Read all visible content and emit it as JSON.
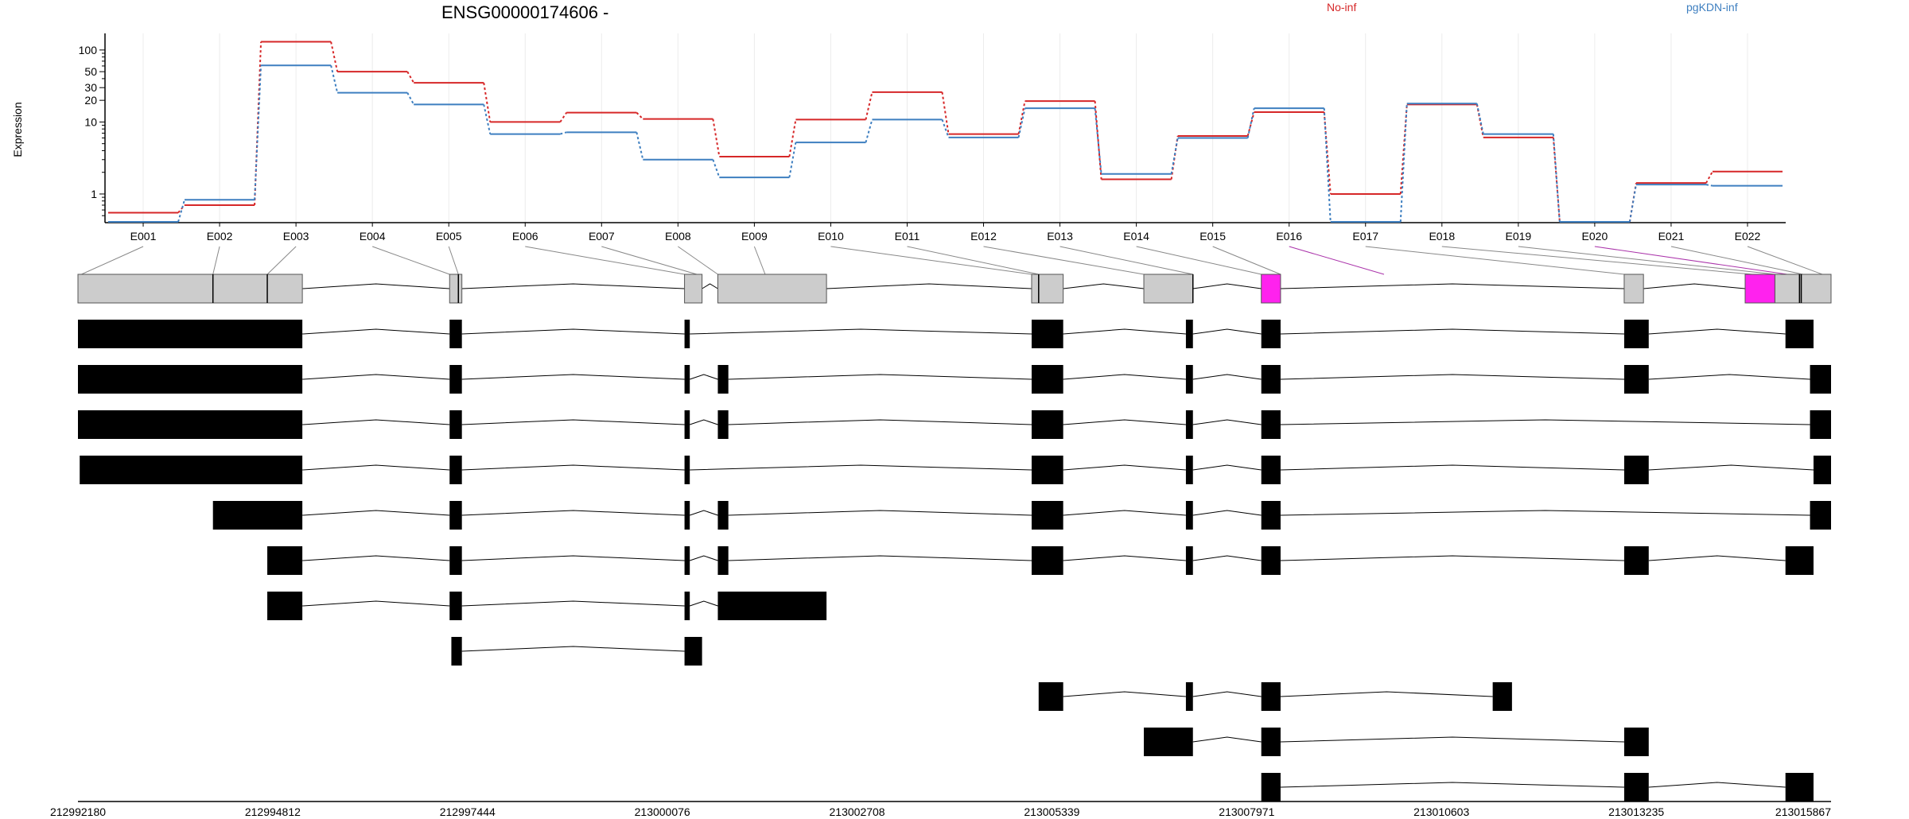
{
  "chart_data": {
    "type": "line",
    "title": "ENSG00000174606 -",
    "ylabel": "Expression",
    "y_scale": "log",
    "y_ticks": [
      1,
      10,
      20,
      30,
      50,
      100
    ],
    "exons": [
      "E001",
      "E002",
      "E003",
      "E004",
      "E005",
      "E006",
      "E007",
      "E008",
      "E009",
      "E010",
      "E011",
      "E012",
      "E013",
      "E014",
      "E015",
      "E016",
      "E017",
      "E018",
      "E019",
      "E020",
      "E021",
      "E022"
    ],
    "series": [
      {
        "name": "No-inf",
        "color": "#d62728",
        "values": [
          0.55,
          0.7,
          130,
          50,
          35,
          10,
          13.5,
          11,
          3.3,
          10.8,
          26,
          6.8,
          19.5,
          1.6,
          6.4,
          13.7,
          1.0,
          17.5,
          6.1,
          0.41,
          1.42,
          2.05
        ]
      },
      {
        "name": "pgKDN-inf",
        "color": "#3e7fc0",
        "values": [
          0.41,
          0.83,
          61,
          25.5,
          17.5,
          6.8,
          7.2,
          3.0,
          1.7,
          5.2,
          10.8,
          6.1,
          15.5,
          1.9,
          6.0,
          15.5,
          0.41,
          18,
          6.8,
          0.41,
          1.35,
          1.3
        ]
      }
    ],
    "gene_model": {
      "exon_ranges": [
        [
          0,
          1
        ],
        [
          1,
          2
        ],
        [
          2,
          3
        ],
        [
          3,
          4
        ],
        [
          4,
          5
        ],
        [
          5,
          6
        ],
        [
          6,
          7
        ],
        [
          7,
          8
        ],
        [
          8,
          9
        ],
        [
          9,
          10
        ],
        [
          10,
          11
        ],
        [
          11,
          12
        ],
        [
          12,
          13
        ],
        [
          13,
          14
        ],
        [
          14,
          15
        ],
        [
          15,
          16
        ],
        [
          16,
          17
        ],
        [
          17,
          18
        ],
        [
          18,
          19
        ],
        [
          19,
          20
        ],
        [
          20,
          21
        ],
        [
          21,
          22
        ]
      ],
      "highlight": [
        "E016",
        "E020"
      ],
      "highlight_color": "#ff22ee"
    },
    "genomic_axis": {
      "ticks": [
        "212992180",
        "212994812",
        "212997444",
        "213000076",
        "213002708",
        "213005339",
        "213007971",
        "213010603",
        "213013235",
        "213015867"
      ]
    }
  }
}
